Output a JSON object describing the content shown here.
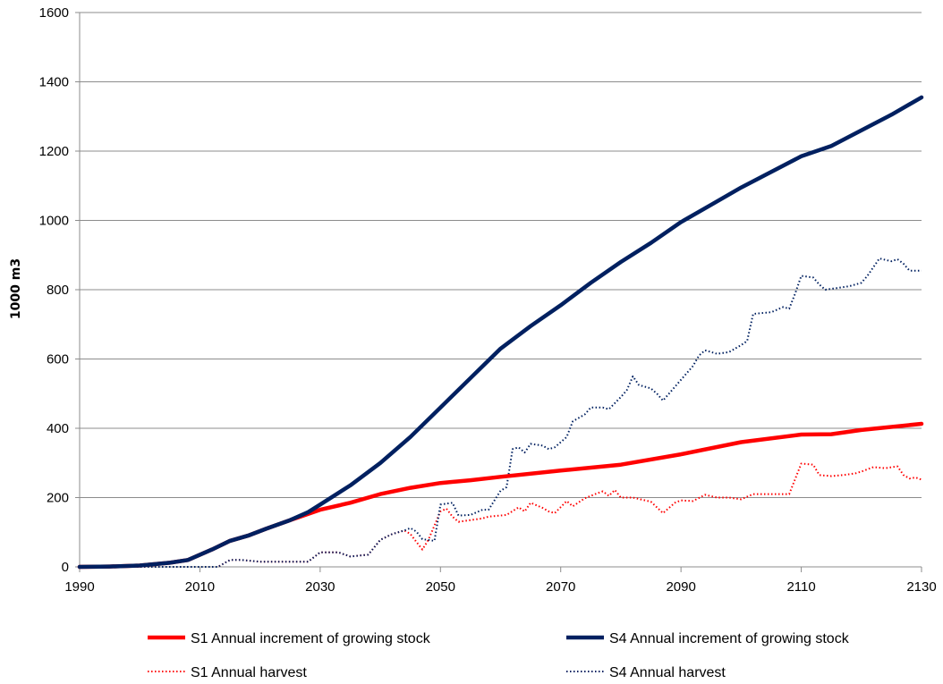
{
  "chart_data": {
    "type": "line",
    "title": "",
    "xlabel": "",
    "ylabel": "1000 m3",
    "xlim": [
      1990,
      2130
    ],
    "ylim": [
      0,
      1600
    ],
    "xticks": [
      1990,
      2010,
      2030,
      2050,
      2070,
      2090,
      2110,
      2130
    ],
    "yticks": [
      0,
      200,
      400,
      600,
      800,
      1000,
      1200,
      1400,
      1600
    ],
    "grid": "horizontal",
    "legend_position": "bottom",
    "series": [
      {
        "name": "S1 Annual increment of growing stock",
        "color": "#ff0000",
        "style": "solid-thick",
        "points": [
          [
            1990,
            0
          ],
          [
            1995,
            1
          ],
          [
            2000,
            4
          ],
          [
            2005,
            12
          ],
          [
            2008,
            20
          ],
          [
            2012,
            50
          ],
          [
            2015,
            75
          ],
          [
            2018,
            90
          ],
          [
            2021,
            110
          ],
          [
            2025,
            135
          ],
          [
            2030,
            165
          ],
          [
            2035,
            185
          ],
          [
            2040,
            210
          ],
          [
            2045,
            228
          ],
          [
            2050,
            242
          ],
          [
            2055,
            250
          ],
          [
            2060,
            260
          ],
          [
            2070,
            278
          ],
          [
            2080,
            295
          ],
          [
            2090,
            325
          ],
          [
            2100,
            360
          ],
          [
            2110,
            382
          ],
          [
            2115,
            383
          ],
          [
            2120,
            395
          ],
          [
            2130,
            413
          ]
        ]
      },
      {
        "name": "S4 Annual increment of growing stock",
        "color": "#002060",
        "style": "solid-thick",
        "points": [
          [
            1990,
            0
          ],
          [
            1995,
            1
          ],
          [
            2000,
            4
          ],
          [
            2005,
            12
          ],
          [
            2008,
            20
          ],
          [
            2012,
            50
          ],
          [
            2015,
            75
          ],
          [
            2018,
            90
          ],
          [
            2021,
            110
          ],
          [
            2025,
            135
          ],
          [
            2028,
            158
          ],
          [
            2030,
            180
          ],
          [
            2035,
            235
          ],
          [
            2040,
            300
          ],
          [
            2045,
            375
          ],
          [
            2050,
            460
          ],
          [
            2055,
            545
          ],
          [
            2060,
            630
          ],
          [
            2065,
            695
          ],
          [
            2070,
            755
          ],
          [
            2075,
            820
          ],
          [
            2080,
            880
          ],
          [
            2085,
            935
          ],
          [
            2090,
            995
          ],
          [
            2095,
            1045
          ],
          [
            2100,
            1095
          ],
          [
            2105,
            1140
          ],
          [
            2110,
            1185
          ],
          [
            2115,
            1215
          ],
          [
            2120,
            1260
          ],
          [
            2125,
            1305
          ],
          [
            2130,
            1355
          ]
        ]
      },
      {
        "name": "S1 Annual harvest",
        "color": "#ff0000",
        "style": "dotted",
        "points": [
          [
            1990,
            0
          ],
          [
            2013,
            0
          ],
          [
            2015,
            20
          ],
          [
            2017,
            20
          ],
          [
            2020,
            15
          ],
          [
            2025,
            15
          ],
          [
            2028,
            15
          ],
          [
            2030,
            42
          ],
          [
            2033,
            42
          ],
          [
            2035,
            30
          ],
          [
            2038,
            35
          ],
          [
            2040,
            78
          ],
          [
            2042,
            95
          ],
          [
            2044,
            105
          ],
          [
            2045,
            95
          ],
          [
            2046,
            72
          ],
          [
            2047,
            50
          ],
          [
            2048,
            78
          ],
          [
            2050,
            160
          ],
          [
            2051,
            168
          ],
          [
            2052,
            145
          ],
          [
            2053,
            130
          ],
          [
            2055,
            135
          ],
          [
            2057,
            140
          ],
          [
            2058,
            145
          ],
          [
            2060,
            148
          ],
          [
            2061,
            150
          ],
          [
            2063,
            172
          ],
          [
            2064,
            160
          ],
          [
            2065,
            185
          ],
          [
            2067,
            170
          ],
          [
            2068,
            160
          ],
          [
            2069,
            155
          ],
          [
            2071,
            190
          ],
          [
            2072,
            175
          ],
          [
            2074,
            198
          ],
          [
            2076,
            212
          ],
          [
            2077,
            218
          ],
          [
            2078,
            205
          ],
          [
            2079,
            222
          ],
          [
            2080,
            200
          ],
          [
            2082,
            200
          ],
          [
            2085,
            188
          ],
          [
            2087,
            155
          ],
          [
            2089,
            185
          ],
          [
            2090,
            192
          ],
          [
            2092,
            190
          ],
          [
            2094,
            208
          ],
          [
            2096,
            200
          ],
          [
            2098,
            200
          ],
          [
            2100,
            195
          ],
          [
            2102,
            210
          ],
          [
            2105,
            210
          ],
          [
            2108,
            210
          ],
          [
            2110,
            298
          ],
          [
            2112,
            295
          ],
          [
            2113,
            265
          ],
          [
            2115,
            262
          ],
          [
            2117,
            265
          ],
          [
            2119,
            270
          ],
          [
            2120,
            275
          ],
          [
            2122,
            288
          ],
          [
            2124,
            285
          ],
          [
            2126,
            290
          ],
          [
            2127,
            265
          ],
          [
            2128,
            255
          ],
          [
            2129,
            258
          ],
          [
            2130,
            252
          ]
        ]
      },
      {
        "name": "S4 Annual harvest",
        "color": "#002060",
        "style": "dotted",
        "points": [
          [
            1990,
            0
          ],
          [
            2013,
            0
          ],
          [
            2015,
            20
          ],
          [
            2017,
            20
          ],
          [
            2020,
            15
          ],
          [
            2025,
            15
          ],
          [
            2028,
            15
          ],
          [
            2030,
            42
          ],
          [
            2033,
            42
          ],
          [
            2035,
            30
          ],
          [
            2038,
            35
          ],
          [
            2040,
            78
          ],
          [
            2042,
            95
          ],
          [
            2044,
            105
          ],
          [
            2045,
            112
          ],
          [
            2046,
            102
          ],
          [
            2047,
            80
          ],
          [
            2049,
            75
          ],
          [
            2050,
            180
          ],
          [
            2052,
            185
          ],
          [
            2053,
            148
          ],
          [
            2055,
            150
          ],
          [
            2057,
            165
          ],
          [
            2058,
            165
          ],
          [
            2060,
            220
          ],
          [
            2061,
            230
          ],
          [
            2062,
            340
          ],
          [
            2063,
            345
          ],
          [
            2064,
            330
          ],
          [
            2065,
            355
          ],
          [
            2067,
            350
          ],
          [
            2068,
            340
          ],
          [
            2069,
            345
          ],
          [
            2071,
            375
          ],
          [
            2072,
            420
          ],
          [
            2074,
            440
          ],
          [
            2075,
            460
          ],
          [
            2077,
            460
          ],
          [
            2078,
            455
          ],
          [
            2080,
            490
          ],
          [
            2081,
            510
          ],
          [
            2082,
            550
          ],
          [
            2083,
            525
          ],
          [
            2085,
            515
          ],
          [
            2086,
            500
          ],
          [
            2087,
            480
          ],
          [
            2088,
            500
          ],
          [
            2090,
            540
          ],
          [
            2092,
            580
          ],
          [
            2093,
            610
          ],
          [
            2094,
            625
          ],
          [
            2096,
            615
          ],
          [
            2098,
            620
          ],
          [
            2100,
            640
          ],
          [
            2101,
            652
          ],
          [
            2102,
            730
          ],
          [
            2105,
            735
          ],
          [
            2107,
            750
          ],
          [
            2108,
            745
          ],
          [
            2109,
            790
          ],
          [
            2110,
            840
          ],
          [
            2112,
            835
          ],
          [
            2113,
            815
          ],
          [
            2114,
            800
          ],
          [
            2116,
            805
          ],
          [
            2118,
            810
          ],
          [
            2120,
            820
          ],
          [
            2121,
            840
          ],
          [
            2123,
            890
          ],
          [
            2125,
            882
          ],
          [
            2126,
            888
          ],
          [
            2127,
            875
          ],
          [
            2128,
            855
          ],
          [
            2130,
            855
          ]
        ]
      }
    ]
  }
}
